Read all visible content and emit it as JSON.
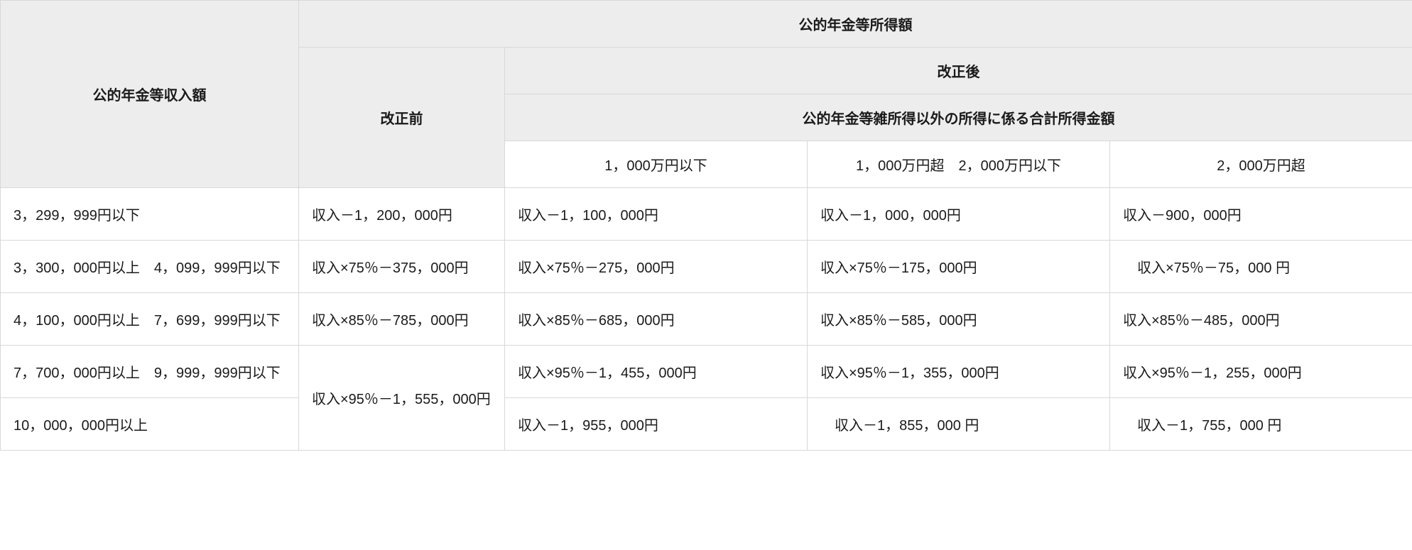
{
  "table": {
    "type": "table",
    "background_color": "#ffffff",
    "header_bg": "#ededed",
    "border_color": "#d8d8d8",
    "text_color": "#1a1a1a",
    "font_size_pt": 15,
    "headers": {
      "income_amount": "公的年金等収入額",
      "taxable_amount": "公的年金等所得額",
      "before_revision": "改正前",
      "after_revision": "改正後",
      "other_income_note": "公的年金等雑所得以外の所得に係る合計所得金額",
      "bracket_1": "1，000万円以下",
      "bracket_2": "1，000万円超　2，000万円以下",
      "bracket_3": "2，000万円超"
    },
    "rows": [
      {
        "income": "3，299，999円以下",
        "before": "収入－1，200，000円",
        "after1": "収入－1，100，000円",
        "after2": "収入－1，000，000円",
        "after3": "収入－900，000円"
      },
      {
        "income": "3，300，000円以上　4，099，999円以下",
        "before": "収入×75％－375，000円",
        "after1": "収入×75％－275，000円",
        "after2": "収入×75％－175，000円",
        "after3": "　収入×75％－75，000 円"
      },
      {
        "income": "4，100，000円以上　7，699，999円以下",
        "before": "収入×85％－785，000円",
        "after1": "収入×85％－685，000円",
        "after2": "収入×85％－585，000円",
        "after3": "収入×85％－485，000円"
      },
      {
        "income": "7，700，000円以上　9，999，999円以下",
        "before_merged": "収入×95％－1，555，000円",
        "after1": "収入×95％－1，455，000円",
        "after2": "収入×95％－1，355，000円",
        "after3": "収入×95％－1，255，000円"
      },
      {
        "income": "10，000，000円以上",
        "after1": "収入－1，955，000円",
        "after2": "　収入－1，855，000 円",
        "after3": "　収入－1，755，000 円"
      }
    ]
  }
}
